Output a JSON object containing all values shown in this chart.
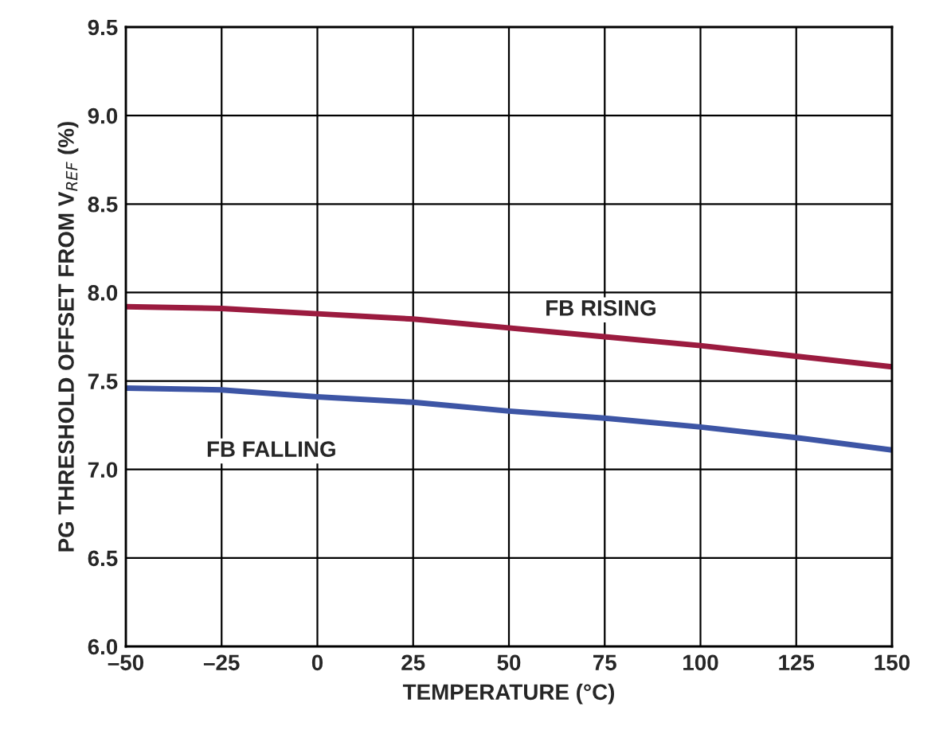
{
  "chart_data": {
    "type": "line",
    "xlabel": "TEMPERATURE (°C)",
    "ylabel": "PG THRESHOLD OFFSET FROM V$_{REF}$ (%)",
    "x": [
      -50,
      -25,
      0,
      25,
      50,
      75,
      100,
      125,
      150
    ],
    "series": [
      {
        "name": "FB RISING",
        "color": "#9b1b3f",
        "values": [
          7.92,
          7.91,
          7.88,
          7.85,
          7.8,
          7.75,
          7.7,
          7.64,
          7.58
        ]
      },
      {
        "name": "FB FALLING",
        "color": "#3d55a5",
        "values": [
          7.46,
          7.45,
          7.41,
          7.38,
          7.33,
          7.29,
          7.24,
          7.18,
          7.11
        ]
      }
    ],
    "xlim": [
      -50,
      150
    ],
    "xticks": [
      {
        "value": -50,
        "label": "–50"
      },
      {
        "value": -25,
        "label": "–25"
      },
      0,
      25,
      50,
      75,
      100,
      125,
      150
    ],
    "ylim": [
      6.0,
      9.5
    ],
    "yticks": [
      {
        "value": 6.0,
        "label": "6.0"
      },
      {
        "value": 6.5,
        "label": "6.5"
      },
      {
        "value": 7.0,
        "label": "7.0"
      },
      {
        "value": 7.5,
        "label": "7.5"
      },
      {
        "value": 8.0,
        "label": "8.0"
      },
      {
        "value": 8.5,
        "label": "8.5"
      },
      {
        "value": 9.0,
        "label": "9.0"
      },
      {
        "value": 9.5,
        "label": "9.5"
      }
    ],
    "grid": true,
    "legend": false
  }
}
